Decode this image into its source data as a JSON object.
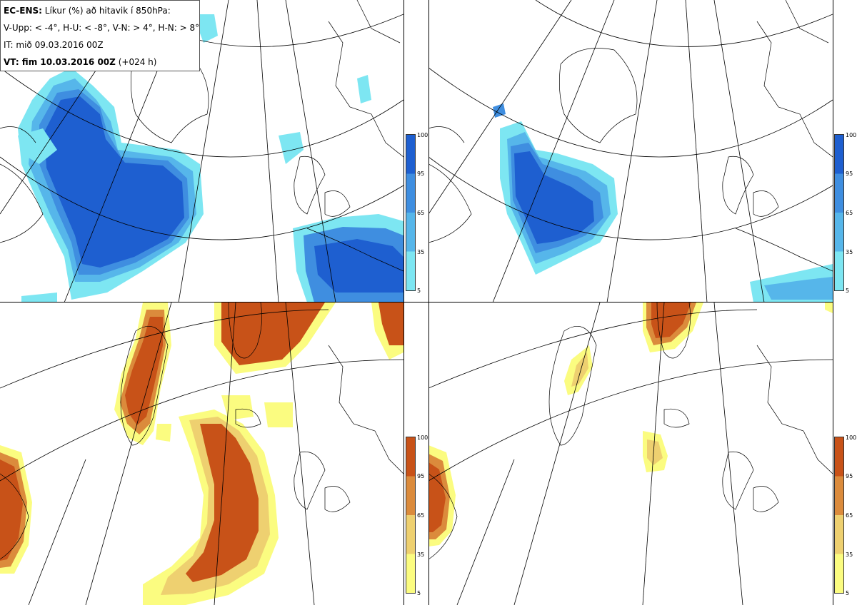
{
  "header": {
    "line1_bold": "EC-ENS:",
    "line1_rest": "Líkur (%) að hitavik í 850hPa:",
    "line2": "V-Upp: < -4°, H-U: < -8°, V-N: > 4°, H-N: > 8°",
    "line3": "IT: mið 09.03.2016 00Z",
    "line4_bold": "VT: fim 10.03.2016 00Z",
    "line4_rest": "(+024 h)"
  },
  "colorbars": {
    "cold": {
      "ticks": [
        "100",
        "95",
        "65",
        "35",
        "5"
      ],
      "colors": [
        "#1e5fd0",
        "#3f8ee0",
        "#56b6ea",
        "#7de6f2"
      ]
    },
    "warm": {
      "ticks": [
        "100",
        "95",
        "65",
        "35",
        "5"
      ],
      "colors": [
        "#c85218",
        "#db8b3c",
        "#eed070",
        "#fbfc80"
      ]
    }
  },
  "panels": [
    {
      "id": "panel-tl",
      "variable": "V-Upp",
      "palette": "cold"
    },
    {
      "id": "panel-tr",
      "variable": "H-U",
      "palette": "cold"
    },
    {
      "id": "panel-bl",
      "variable": "V-N",
      "palette": "warm"
    },
    {
      "id": "panel-br",
      "variable": "H-N",
      "palette": "warm"
    }
  ]
}
